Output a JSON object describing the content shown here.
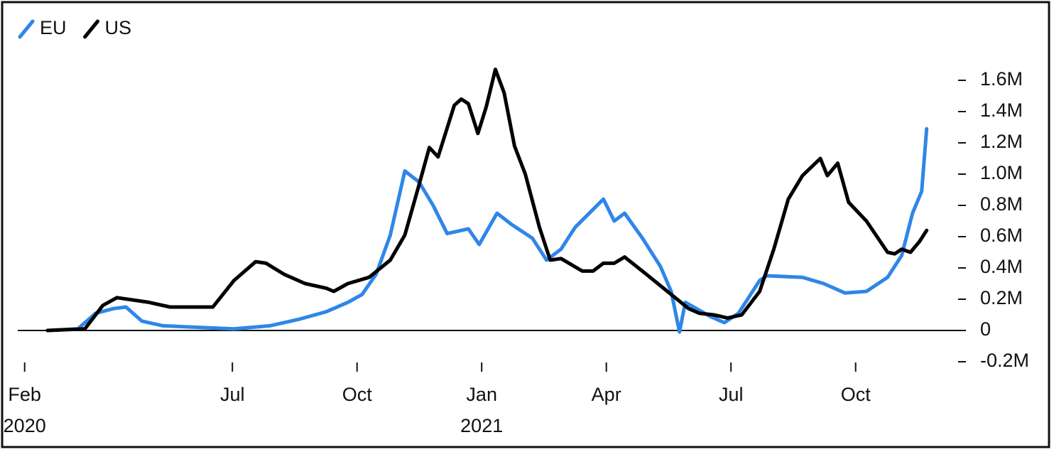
{
  "chart_data": {
    "type": "line",
    "legend": "top-left",
    "series": [
      {
        "name": "EU",
        "color": "#2f86e8",
        "x": [
          0.55,
          1.28,
          1.71,
          2.14,
          2.44,
          2.82,
          3.33,
          4.19,
          5.04,
          5.9,
          6.58,
          7.26,
          7.78,
          8.12,
          8.46,
          8.8,
          9.15,
          9.49,
          9.83,
          10.17,
          10.68,
          10.94,
          11.37,
          11.71,
          12.22,
          12.56,
          12.91,
          13.25,
          13.93,
          14.19,
          14.44,
          14.87,
          15.3,
          15.56,
          15.76,
          15.9,
          16.5,
          16.84,
          17.18,
          17.69,
          17.86,
          18.72,
          19.23,
          19.74,
          20.26,
          20.77,
          21.11,
          21.37,
          21.59,
          21.71
        ],
        "values": [
          0,
          10000,
          110000,
          140000,
          150000,
          60000,
          30000,
          20000,
          10000,
          30000,
          70000,
          120000,
          180000,
          230000,
          360000,
          610000,
          1020000,
          950000,
          800000,
          620000,
          650000,
          550000,
          750000,
          680000,
          590000,
          450000,
          520000,
          660000,
          840000,
          700000,
          750000,
          590000,
          410000,
          250000,
          -10000,
          180000,
          90000,
          50000,
          110000,
          320000,
          350000,
          340000,
          300000,
          240000,
          250000,
          340000,
          480000,
          750000,
          890000,
          1290000
        ]
      },
      {
        "name": "US",
        "color": "#000000",
        "x": [
          0.55,
          1.45,
          1.88,
          2.22,
          2.99,
          3.5,
          4.53,
          5.04,
          5.56,
          5.81,
          6.24,
          6.75,
          7.26,
          7.44,
          7.78,
          8.29,
          8.8,
          9.15,
          9.49,
          9.74,
          9.95,
          10.34,
          10.51,
          10.68,
          10.91,
          11.11,
          11.33,
          11.54,
          11.79,
          12.05,
          12.39,
          12.65,
          12.91,
          13.42,
          13.68,
          13.93,
          14.19,
          14.44,
          14.96,
          15.47,
          15.98,
          16.24,
          16.58,
          16.92,
          17.26,
          17.69,
          18.03,
          18.38,
          18.72,
          19.15,
          19.32,
          19.57,
          19.83,
          20.26,
          20.77,
          20.94,
          21.11,
          21.32,
          21.54,
          21.71
        ],
        "values": [
          0,
          10000,
          160000,
          210000,
          180000,
          150000,
          150000,
          320000,
          440000,
          430000,
          360000,
          300000,
          270000,
          250000,
          300000,
          340000,
          450000,
          610000,
          930000,
          1170000,
          1110000,
          1440000,
          1480000,
          1450000,
          1260000,
          1430000,
          1670000,
          1520000,
          1180000,
          1000000,
          660000,
          450000,
          460000,
          380000,
          380000,
          430000,
          430000,
          470000,
          360000,
          250000,
          140000,
          110000,
          100000,
          80000,
          100000,
          250000,
          520000,
          840000,
          990000,
          1100000,
          990000,
          1070000,
          820000,
          700000,
          500000,
          490000,
          520000,
          500000,
          570000,
          640000
        ]
      }
    ],
    "xlim": [
      -0.2,
      21.8
    ],
    "xticks": [
      {
        "value": 0,
        "label": "Feb",
        "sublabel": "2020"
      },
      {
        "value": 5,
        "label": "Jul"
      },
      {
        "value": 8,
        "label": "Oct"
      },
      {
        "value": 11,
        "label": "Jan",
        "sublabel": "2021"
      },
      {
        "value": 14,
        "label": "Apr"
      },
      {
        "value": 17,
        "label": "Jul"
      },
      {
        "value": 20,
        "label": "Oct"
      }
    ],
    "ylim": [
      -250000,
      1750000
    ],
    "yticks": [
      {
        "value": -200000,
        "label": "-0.2M"
      },
      0,
      {
        "value": 200000,
        "label": "0.2M"
      },
      {
        "value": 400000,
        "label": "0.4M"
      },
      {
        "value": 600000,
        "label": "0.6M"
      },
      {
        "value": 800000,
        "label": "0.8M"
      },
      {
        "value": 1000000,
        "label": "1.0M"
      },
      {
        "value": 1200000,
        "label": "1.2M"
      },
      {
        "value": 1400000,
        "label": "1.4M"
      },
      {
        "value": 1600000,
        "label": "1.6M"
      }
    ]
  }
}
